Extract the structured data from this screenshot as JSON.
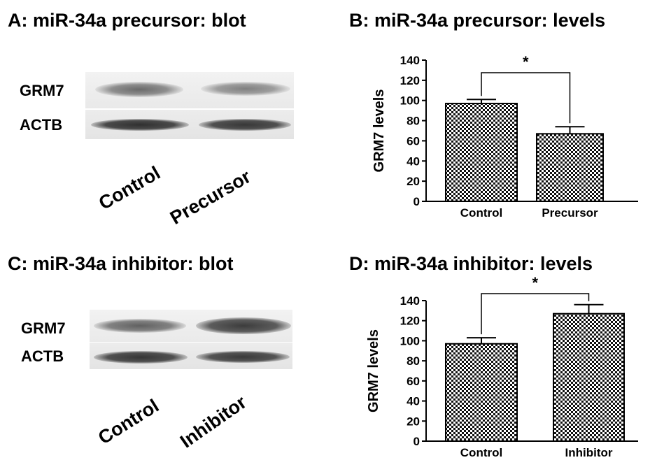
{
  "panels": {
    "a": {
      "title": "A: miR-34a precursor: blot",
      "bands": [
        "GRM7",
        "ACTB"
      ],
      "lanes": [
        "Control",
        "Precursor"
      ]
    },
    "b": {
      "title": "B: miR-34a precursor: levels"
    },
    "c": {
      "title": "C: miR-34a inhibitor: blot",
      "bands": [
        "GRM7",
        "ACTB"
      ],
      "lanes": [
        "Control",
        "Inhibitor"
      ]
    },
    "d": {
      "title": "D: miR-34a inhibitor: levels"
    }
  },
  "chart_data": [
    {
      "type": "bar",
      "title": "B: miR-34a precursor: levels",
      "categories": [
        "Control",
        "Precursor"
      ],
      "values": [
        97,
        67
      ],
      "errors": [
        4,
        7
      ],
      "ylabel": "GRM7 levels",
      "xlabel": "",
      "ylim": [
        0,
        140
      ],
      "yticks": [
        "0",
        "20",
        "40",
        "60",
        "80",
        "100",
        "120",
        "140"
      ],
      "significance": "*",
      "grid": false,
      "bar_pattern": "checkerboard"
    },
    {
      "type": "bar",
      "title": "D: miR-34a inhibitor: levels",
      "categories": [
        "Control",
        "Inhibitor"
      ],
      "values": [
        97,
        127
      ],
      "errors": [
        6,
        9
      ],
      "ylabel": "GRM7 levels",
      "xlabel": "",
      "ylim": [
        0,
        140
      ],
      "yticks": [
        "0",
        "20",
        "40",
        "60",
        "80",
        "100",
        "120",
        "140"
      ],
      "significance": "*",
      "grid": false,
      "bar_pattern": "checkerboard"
    }
  ]
}
